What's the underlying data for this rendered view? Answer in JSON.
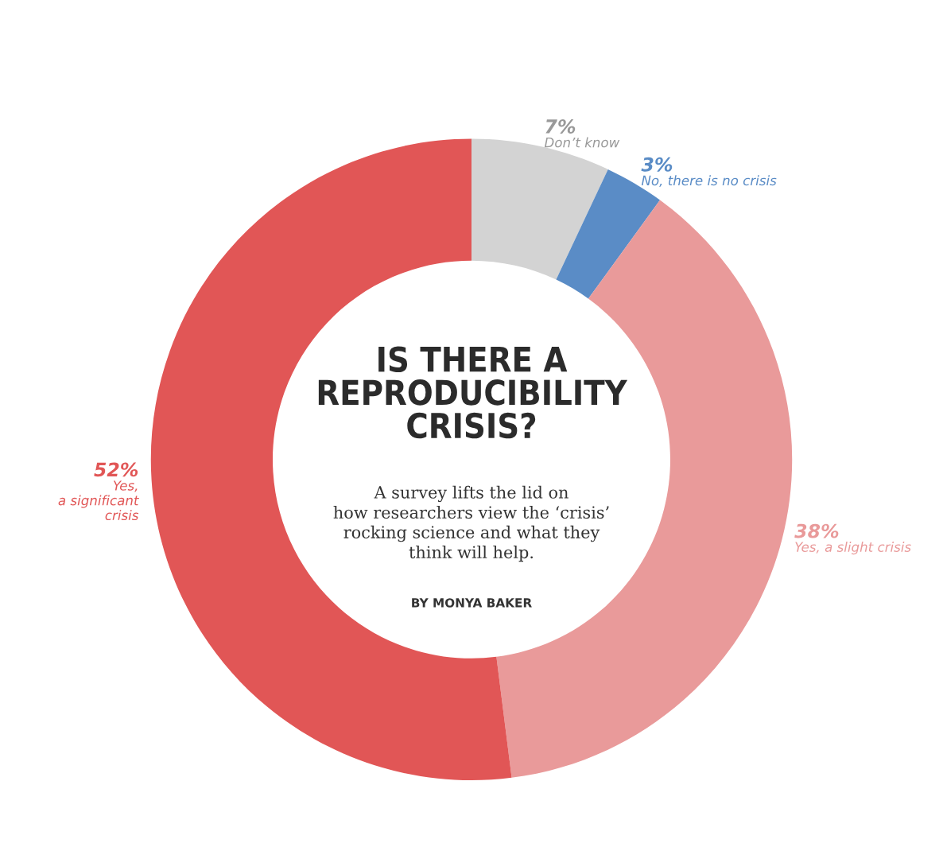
{
  "chart_data": {
    "type": "donut",
    "title": "IS THERE A\nREPRODUCIBILITY\nCRISIS?",
    "subtitle": "A survey lifts the lid on\nhow researchers view the ‘crisis’\nrocking science and what they\nthink will help.",
    "annotations": [
      "BY MONYA BAKER"
    ],
    "categories": [
      "Don’t know",
      "No, there is no crisis",
      "Yes, a slight crisis",
      "Yes, a significant crisis"
    ],
    "values": [
      7,
      3,
      38,
      52
    ],
    "value_labels": [
      "7%",
      "3%",
      "38%",
      "52%"
    ],
    "colors": [
      "#d3d3d3",
      "#5a8cc6",
      "#e99a9a",
      "#e15656"
    ],
    "legend": false
  }
}
